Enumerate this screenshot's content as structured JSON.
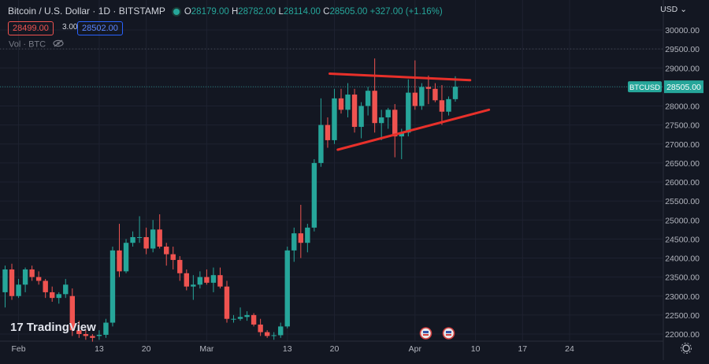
{
  "header": {
    "symbol_title": "Bitcoin / U.S. Dollar · 1D · BITSTAMP",
    "ohlc": [
      {
        "key": "O",
        "value": "28179.00"
      },
      {
        "key": "H",
        "value": "28782.00"
      },
      {
        "key": "L",
        "value": "28114.00"
      },
      {
        "key": "C",
        "value": "28505.00"
      }
    ],
    "change": "+327.00 (+1.16%)",
    "sell_price": "28499.00",
    "spread": "3.00",
    "buy_price": "28502.00",
    "volume_label": "Vol · BTC",
    "currency": "USD"
  },
  "watermark": "TradingView",
  "last_price": {
    "symbol": "BTCUSD",
    "value": "28505.00"
  },
  "colors": {
    "background": "#131722",
    "up": "#26a69a",
    "down": "#ef5350",
    "grid": "#1e2230",
    "trendline": "#e8302a",
    "axis_text": "#b2b5be"
  },
  "chart_data": {
    "type": "candlestick",
    "title": "Bitcoin / U.S. Dollar · 1D · BITSTAMP",
    "ylim": [
      21900,
      30400
    ],
    "y_ticks": [
      22000,
      22500,
      23000,
      23500,
      24000,
      24500,
      25000,
      25500,
      26000,
      26500,
      27000,
      27500,
      28000,
      28500,
      29000,
      29500,
      30000
    ],
    "x_ticks": [
      {
        "label": "Feb",
        "index": 2
      },
      {
        "label": "13",
        "index": 14
      },
      {
        "label": "20",
        "index": 21
      },
      {
        "label": "Mar",
        "index": 30
      },
      {
        "label": "13",
        "index": 42
      },
      {
        "label": "20",
        "index": 49
      },
      {
        "label": "Apr",
        "index": 61
      },
      {
        "label": "10",
        "index": 70
      },
      {
        "label": "17",
        "index": 77
      },
      {
        "label": "24",
        "index": 84
      }
    ],
    "candles": [
      {
        "o": 23100,
        "h": 23800,
        "l": 22700,
        "c": 23700
      },
      {
        "o": 23700,
        "h": 23850,
        "l": 22900,
        "c": 23000
      },
      {
        "o": 23000,
        "h": 23450,
        "l": 22950,
        "c": 23300
      },
      {
        "o": 23300,
        "h": 23750,
        "l": 23100,
        "c": 23700
      },
      {
        "o": 23700,
        "h": 23800,
        "l": 23400,
        "c": 23500
      },
      {
        "o": 23500,
        "h": 23650,
        "l": 23300,
        "c": 23400
      },
      {
        "o": 23400,
        "h": 23450,
        "l": 22950,
        "c": 23100
      },
      {
        "o": 23100,
        "h": 23250,
        "l": 22850,
        "c": 22950
      },
      {
        "o": 22950,
        "h": 23100,
        "l": 22800,
        "c": 23050
      },
      {
        "o": 23050,
        "h": 23450,
        "l": 22950,
        "c": 23300
      },
      {
        "o": 23000,
        "h": 23200,
        "l": 21950,
        "c": 22100
      },
      {
        "o": 22100,
        "h": 22350,
        "l": 21900,
        "c": 22000
      },
      {
        "o": 22000,
        "h": 22100,
        "l": 21850,
        "c": 21950
      },
      {
        "o": 21950,
        "h": 22000,
        "l": 21800,
        "c": 21900
      },
      {
        "o": 21950,
        "h": 22100,
        "l": 21850,
        "c": 21980
      },
      {
        "o": 21980,
        "h": 22400,
        "l": 21900,
        "c": 22300
      },
      {
        "o": 22300,
        "h": 24300,
        "l": 22200,
        "c": 24200
      },
      {
        "o": 24200,
        "h": 24900,
        "l": 23500,
        "c": 23650
      },
      {
        "o": 23650,
        "h": 24500,
        "l": 23600,
        "c": 24400
      },
      {
        "o": 24400,
        "h": 24700,
        "l": 24300,
        "c": 24550
      },
      {
        "o": 24550,
        "h": 25100,
        "l": 24400,
        "c": 24550
      },
      {
        "o": 24550,
        "h": 24800,
        "l": 24100,
        "c": 24250
      },
      {
        "o": 24250,
        "h": 25000,
        "l": 24150,
        "c": 24750
      },
      {
        "o": 24750,
        "h": 25150,
        "l": 24250,
        "c": 24300
      },
      {
        "o": 24300,
        "h": 24400,
        "l": 23800,
        "c": 24100
      },
      {
        "o": 24100,
        "h": 24300,
        "l": 23700,
        "c": 23950
      },
      {
        "o": 23950,
        "h": 24050,
        "l": 23400,
        "c": 23600
      },
      {
        "o": 23600,
        "h": 23700,
        "l": 23150,
        "c": 23250
      },
      {
        "o": 23250,
        "h": 23550,
        "l": 22900,
        "c": 23300
      },
      {
        "o": 23300,
        "h": 23650,
        "l": 23200,
        "c": 23500
      },
      {
        "o": 23500,
        "h": 23700,
        "l": 23300,
        "c": 23350
      },
      {
        "o": 23350,
        "h": 23750,
        "l": 23100,
        "c": 23550
      },
      {
        "o": 23550,
        "h": 23750,
        "l": 23200,
        "c": 23250
      },
      {
        "o": 23250,
        "h": 23400,
        "l": 22300,
        "c": 22400
      },
      {
        "o": 22400,
        "h": 22500,
        "l": 22300,
        "c": 22400
      },
      {
        "o": 22400,
        "h": 22700,
        "l": 22350,
        "c": 22450
      },
      {
        "o": 22450,
        "h": 22600,
        "l": 22350,
        "c": 22500
      },
      {
        "o": 22500,
        "h": 22550,
        "l": 22200,
        "c": 22250
      },
      {
        "o": 22250,
        "h": 22400,
        "l": 21950,
        "c": 22050
      },
      {
        "o": 22050,
        "h": 22100,
        "l": 21900,
        "c": 21950
      },
      {
        "o": 21950,
        "h": 22050,
        "l": 21850,
        "c": 21970
      },
      {
        "o": 21970,
        "h": 22300,
        "l": 21900,
        "c": 22200
      },
      {
        "o": 22200,
        "h": 24300,
        "l": 22150,
        "c": 24200
      },
      {
        "o": 24200,
        "h": 24800,
        "l": 23900,
        "c": 24650
      },
      {
        "o": 24650,
        "h": 25400,
        "l": 24000,
        "c": 24400
      },
      {
        "o": 24400,
        "h": 24900,
        "l": 24150,
        "c": 24800
      },
      {
        "o": 24800,
        "h": 26600,
        "l": 24700,
        "c": 26500
      },
      {
        "o": 26500,
        "h": 28200,
        "l": 26400,
        "c": 27500
      },
      {
        "o": 27500,
        "h": 27700,
        "l": 26900,
        "c": 27100
      },
      {
        "o": 27100,
        "h": 28450,
        "l": 27000,
        "c": 28200
      },
      {
        "o": 28200,
        "h": 28450,
        "l": 27800,
        "c": 27900
      },
      {
        "o": 27900,
        "h": 28600,
        "l": 27700,
        "c": 28300
      },
      {
        "o": 28300,
        "h": 28450,
        "l": 27300,
        "c": 27450
      },
      {
        "o": 27450,
        "h": 28100,
        "l": 27150,
        "c": 28000
      },
      {
        "o": 28000,
        "h": 28500,
        "l": 27750,
        "c": 28400
      },
      {
        "o": 28400,
        "h": 29250,
        "l": 27300,
        "c": 27550
      },
      {
        "o": 27550,
        "h": 27900,
        "l": 27100,
        "c": 27700
      },
      {
        "o": 27700,
        "h": 27950,
        "l": 27400,
        "c": 27900
      },
      {
        "o": 27900,
        "h": 28050,
        "l": 26650,
        "c": 27200
      },
      {
        "o": 27200,
        "h": 27400,
        "l": 26600,
        "c": 27300
      },
      {
        "o": 27300,
        "h": 28700,
        "l": 27200,
        "c": 28350
      },
      {
        "o": 28350,
        "h": 29200,
        "l": 27900,
        "c": 28000
      },
      {
        "o": 28000,
        "h": 28600,
        "l": 27900,
        "c": 28500
      },
      {
        "o": 28500,
        "h": 28800,
        "l": 28050,
        "c": 28450
      },
      {
        "o": 28450,
        "h": 28600,
        "l": 28100,
        "c": 28150
      },
      {
        "o": 28150,
        "h": 28550,
        "l": 27500,
        "c": 27850
      },
      {
        "o": 27850,
        "h": 28250,
        "l": 27750,
        "c": 28180
      },
      {
        "o": 28179,
        "h": 28782,
        "l": 28114,
        "c": 28505
      }
    ],
    "trendlines": [
      {
        "from": {
          "index": 48.3,
          "value": 28850
        },
        "to": {
          "index": 69.2,
          "value": 28680
        }
      },
      {
        "from": {
          "index": 49.5,
          "value": 26850
        },
        "to": {
          "index": 72.0,
          "value": 27900
        }
      }
    ],
    "last_price_value": 28505,
    "high_marker_value": 29500
  }
}
